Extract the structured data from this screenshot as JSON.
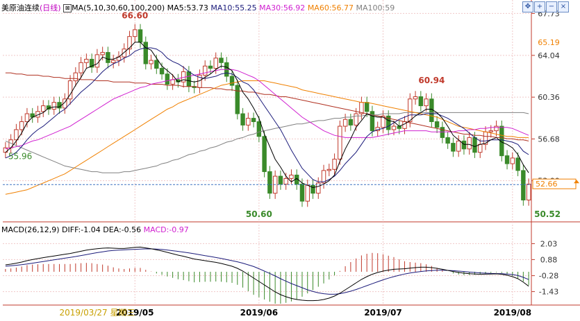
{
  "header": {
    "title": "美原油连续",
    "period": "(日线)",
    "ma_params": "MA(5,10,30,60,100,200)",
    "ma5": "MA5:53.73",
    "ma10": "MA10:55.25",
    "ma30": "MA30:56.92",
    "ma60": "MA60:56.77",
    "ma100": "MA100:59"
  },
  "macd_header": {
    "params": "MACD(26,12,9)",
    "diff": "DIFF:-1.04",
    "dea": "DEA:-0.56",
    "macd": "MACD:-0.97"
  },
  "toolbar": {
    "icons": [
      "move-icon",
      "zoom-in-icon",
      "zoom-out-icon",
      "close-icon"
    ]
  },
  "colors": {
    "up": "#c0392b",
    "down": "#3a8a2a",
    "ma5": "#000000",
    "ma10": "#1a1a7a",
    "ma30": "#d020d0",
    "ma60": "#f08000",
    "ma100": "#808080",
    "ma200": "#b03020",
    "grid": "#f0c8c8"
  },
  "x_axis": {
    "cursor_label": "2019/03/27 星期三",
    "ticks": [
      "2019/05",
      "2019/06",
      "2019/07",
      "2019/08"
    ]
  },
  "chart_data": [
    {
      "type": "candlestick",
      "title": "美原油连续(日线)",
      "y_ticks": [
        "67.73",
        "64.04",
        "60.36",
        "56.68",
        "53.00"
      ],
      "ylim": [
        49.5,
        68.0
      ],
      "annotations": {
        "low_start": "55.96",
        "high": "66.60",
        "low_jun": "50.60",
        "high_jul": "60.94",
        "low_aug": "50.52",
        "ma_tag": "65.19",
        "last_price": "52.66"
      },
      "close": [
        55.9,
        56.6,
        57.5,
        58.2,
        58.9,
        58.6,
        59.1,
        59.6,
        59.3,
        59.9,
        59.4,
        60.2,
        61.8,
        62.5,
        63.4,
        63.7,
        63.0,
        64.1,
        64.3,
        63.4,
        63.6,
        63.9,
        64.6,
        65.7,
        66.3,
        65.2,
        63.3,
        63.6,
        62.9,
        62.4,
        61.5,
        61.9,
        61.7,
        62.6,
        61.3,
        61.2,
        62.3,
        63.1,
        62.9,
        63.8,
        63.4,
        62.2,
        61.4,
        58.9,
        57.9,
        58.5,
        58.2,
        56.9,
        53.8,
        51.9,
        53.4,
        52.7,
        53.2,
        53.5,
        52.7,
        51.2,
        52.6,
        51.9,
        52.8,
        53.9,
        54.0,
        54.9,
        57.8,
        58.4,
        57.9,
        58.9,
        59.9,
        59.1,
        57.4,
        57.7,
        58.7,
        57.5,
        57.8,
        57.6,
        58.2,
        60.2,
        60.4,
        59.6,
        60.2,
        58.2,
        57.7,
        56.8,
        56.3,
        55.6,
        56.5,
        55.8,
        56.8,
        55.5,
        56.2,
        57.3,
        57.4,
        57.8,
        55.2,
        54.5,
        55.0,
        53.9,
        51.3,
        52.7
      ],
      "ma5": [
        55.5,
        55.9,
        56.5,
        57.2,
        58.1,
        58.6,
        58.8,
        59.0,
        59.4,
        59.5,
        59.5,
        59.9,
        60.6,
        61.4,
        62.1,
        62.9,
        63.1,
        63.3,
        63.9,
        63.7,
        63.7,
        63.9,
        64.3,
        64.7,
        65.2,
        65.2,
        64.7,
        64.5,
        63.8,
        63.1,
        62.7,
        62.3,
        61.7,
        61.9,
        61.8,
        61.7,
        61.8,
        62.1,
        62.4,
        62.8,
        63.1,
        63.0,
        62.7,
        61.8,
        60.8,
        60.2,
        59.4,
        58.5,
        57.1,
        56.0,
        54.9,
        54.2,
        53.4,
        52.9,
        53.2,
        52.8,
        52.6,
        52.4,
        52.5,
        52.7,
        53.0,
        53.5,
        54.7,
        55.8,
        56.7,
        57.7,
        58.3,
        58.9,
        58.7,
        58.6,
        58.6,
        58.3,
        58.2,
        57.8,
        58.0,
        58.3,
        58.7,
        59.0,
        59.3,
        59.3,
        59.0,
        58.5,
        57.8,
        57.0,
        56.6,
        56.2,
        56.2,
        56.0,
        56.2,
        56.3,
        56.6,
        56.8,
        56.4,
        56.2,
        55.9,
        55.3,
        54.4,
        53.7
      ],
      "ma10": [
        55.0,
        55.2,
        55.5,
        56.0,
        56.6,
        57.1,
        57.5,
        57.8,
        58.2,
        58.6,
        59.0,
        59.3,
        59.8,
        60.3,
        60.8,
        61.2,
        61.6,
        62.1,
        62.6,
        63.0,
        63.3,
        63.5,
        63.8,
        64.0,
        64.4,
        64.6,
        64.7,
        64.7,
        64.6,
        64.3,
        63.8,
        63.5,
        63.3,
        63.0,
        62.6,
        62.3,
        62.1,
        62.0,
        62.1,
        62.2,
        62.4,
        62.5,
        62.4,
        62.1,
        61.7,
        61.5,
        61.0,
        60.3,
        59.6,
        58.9,
        58.2,
        57.5,
        56.6,
        55.7,
        54.9,
        54.1,
        53.6,
        53.1,
        52.9,
        52.9,
        53.1,
        53.4,
        53.9,
        54.5,
        55.0,
        55.5,
        56.2,
        56.9,
        57.3,
        57.5,
        57.6,
        57.8,
        58.1,
        58.4,
        58.6,
        58.8,
        58.8,
        58.8,
        58.9,
        58.9,
        58.9,
        58.7,
        58.5,
        58.2,
        57.9,
        57.6,
        57.2,
        56.8,
        56.5,
        56.5,
        56.6,
        56.6,
        56.6,
        56.5,
        56.4,
        56.2,
        55.6,
        55.3
      ],
      "ma30": [
        55.8,
        55.9,
        56.0,
        56.1,
        56.3,
        56.5,
        56.6,
        56.8,
        57.0,
        57.2,
        57.4,
        57.6,
        57.8,
        58.1,
        58.4,
        58.7,
        59.0,
        59.3,
        59.6,
        59.9,
        60.2,
        60.4,
        60.6,
        60.8,
        61.0,
        61.2,
        61.3,
        61.5,
        61.6,
        61.7,
        61.8,
        61.9,
        62.0,
        62.1,
        62.2,
        62.3,
        62.4,
        62.5,
        62.6,
        62.7,
        62.8,
        62.8,
        62.8,
        62.7,
        62.5,
        62.3,
        62.1,
        61.8,
        61.4,
        61.0,
        60.6,
        60.2,
        59.8,
        59.4,
        59.0,
        58.6,
        58.3,
        58.0,
        57.7,
        57.4,
        57.2,
        57.0,
        56.9,
        56.8,
        56.8,
        56.8,
        56.8,
        56.8,
        56.8,
        56.9,
        57.0,
        57.1,
        57.2,
        57.3,
        57.4,
        57.4,
        57.4,
        57.4,
        57.4,
        57.3,
        57.3,
        57.3,
        57.3,
        57.3,
        57.4,
        57.4,
        57.5,
        57.5,
        57.6,
        57.6,
        57.7,
        57.7,
        57.7,
        57.7,
        57.6,
        57.4,
        57.2,
        57.0
      ],
      "ma60": [
        51.8,
        51.9,
        52.0,
        52.1,
        52.2,
        52.4,
        52.6,
        52.8,
        53.0,
        53.2,
        53.4,
        53.6,
        53.9,
        54.2,
        54.5,
        54.8,
        55.1,
        55.4,
        55.7,
        56.0,
        56.3,
        56.6,
        56.9,
        57.2,
        57.5,
        57.8,
        58.1,
        58.4,
        58.7,
        59.0,
        59.3,
        59.5,
        59.8,
        60.0,
        60.2,
        60.4,
        60.6,
        60.8,
        61.0,
        61.2,
        61.4,
        61.5,
        61.6,
        61.7,
        61.8,
        61.8,
        61.8,
        61.8,
        61.8,
        61.7,
        61.6,
        61.5,
        61.4,
        61.3,
        61.2,
        61.0,
        60.9,
        60.8,
        60.7,
        60.6,
        60.5,
        60.4,
        60.3,
        60.2,
        60.1,
        60.0,
        59.9,
        59.9,
        59.8,
        59.7,
        59.6,
        59.5,
        59.4,
        59.3,
        59.2,
        59.1,
        59.0,
        58.9,
        58.8,
        58.7,
        58.6,
        58.4,
        58.2,
        58.0,
        57.8,
        57.7,
        57.6,
        57.5,
        57.4,
        57.3,
        57.2,
        57.1,
        57.0,
        56.9,
        56.9,
        56.8,
        56.8,
        56.8
      ],
      "ma100": [
        56.5,
        56.3,
        56.1,
        55.9,
        55.7,
        55.5,
        55.3,
        55.1,
        54.9,
        54.7,
        54.5,
        54.3,
        54.2,
        54.1,
        54.0,
        53.9,
        53.8,
        53.8,
        53.7,
        53.7,
        53.7,
        53.7,
        53.8,
        53.8,
        53.9,
        54.0,
        54.1,
        54.2,
        54.3,
        54.5,
        54.6,
        54.8,
        54.9,
        55.1,
        55.3,
        55.4,
        55.6,
        55.7,
        55.9,
        56.0,
        56.2,
        56.4,
        56.5,
        56.7,
        56.8,
        57.0,
        57.1,
        57.3,
        57.4,
        57.5,
        57.6,
        57.7,
        57.8,
        57.9,
        58.0,
        58.0,
        58.1,
        58.2,
        58.3,
        58.3,
        58.4,
        58.5,
        58.5,
        58.6,
        58.6,
        58.7,
        58.7,
        58.8,
        58.8,
        58.8,
        58.9,
        58.9,
        58.9,
        58.9,
        59.0,
        59.0,
        59.0,
        59.0,
        59.0,
        59.0,
        59.0,
        59.0,
        59.0,
        59.0,
        59.0,
        59.0,
        59.0,
        59.0,
        59.0,
        59.0,
        59.0,
        59.0,
        59.0,
        59.0,
        59.0,
        59.0,
        59.0,
        58.9
      ],
      "ma200": [
        62.5,
        62.5,
        62.4,
        62.4,
        62.3,
        62.3,
        62.3,
        62.2,
        62.2,
        62.1,
        62.1,
        62.0,
        62.0,
        62.0,
        61.9,
        61.9,
        61.9,
        61.8,
        61.8,
        61.8,
        61.7,
        61.7,
        61.7,
        61.7,
        61.6,
        61.6,
        61.6,
        61.5,
        61.5,
        61.5,
        61.4,
        61.4,
        61.4,
        61.3,
        61.3,
        61.3,
        61.2,
        61.2,
        61.2,
        61.1,
        61.1,
        61.0,
        61.0,
        60.9,
        60.9,
        60.8,
        60.8,
        60.7,
        60.6,
        60.6,
        60.5,
        60.4,
        60.4,
        60.3,
        60.2,
        60.1,
        60.0,
        59.9,
        59.8,
        59.7,
        59.6,
        59.5,
        59.4,
        59.3,
        59.2,
        59.1,
        59.0,
        58.9,
        58.8,
        58.7,
        58.6,
        58.5,
        58.4,
        58.3,
        58.2,
        58.1,
        58.0,
        57.9,
        57.8,
        57.7,
        57.6,
        57.5,
        57.4,
        57.3,
        57.2,
        57.1,
        57.1,
        57.0,
        57.0,
        56.9,
        56.9,
        56.8,
        56.8,
        56.7,
        56.7,
        56.6,
        56.6,
        56.5
      ]
    },
    {
      "type": "bar",
      "title": "MACD(26,12,9)",
      "y_ticks": [
        "2.03",
        "0.88",
        "-0.28",
        "-1.43"
      ],
      "ylim": [
        -2.2,
        2.6
      ],
      "diff": [
        0.5,
        0.55,
        0.62,
        0.7,
        0.8,
        0.88,
        0.95,
        1.02,
        1.08,
        1.14,
        1.2,
        1.26,
        1.32,
        1.4,
        1.48,
        1.56,
        1.62,
        1.66,
        1.7,
        1.72,
        1.7,
        1.68,
        1.68,
        1.72,
        1.76,
        1.78,
        1.72,
        1.66,
        1.58,
        1.5,
        1.4,
        1.3,
        1.2,
        1.12,
        1.02,
        0.92,
        0.86,
        0.8,
        0.74,
        0.68,
        0.6,
        0.5,
        0.4,
        0.25,
        0.05,
        -0.2,
        -0.45,
        -0.7,
        -0.95,
        -1.2,
        -1.45,
        -1.65,
        -1.8,
        -1.92,
        -2.0,
        -2.05,
        -2.08,
        -2.08,
        -2.06,
        -2.0,
        -1.9,
        -1.75,
        -1.55,
        -1.3,
        -1.05,
        -0.8,
        -0.55,
        -0.35,
        -0.18,
        -0.05,
        0.05,
        0.12,
        0.18,
        0.2,
        0.22,
        0.26,
        0.3,
        0.33,
        0.33,
        0.3,
        0.25,
        0.18,
        0.1,
        0.02,
        -0.05,
        -0.1,
        -0.14,
        -0.16,
        -0.18,
        -0.17,
        -0.16,
        -0.15,
        -0.18,
        -0.25,
        -0.35,
        -0.5,
        -0.75,
        -1.04
      ],
      "dea": [
        0.4,
        0.43,
        0.47,
        0.51,
        0.56,
        0.62,
        0.68,
        0.74,
        0.8,
        0.86,
        0.92,
        0.98,
        1.04,
        1.1,
        1.17,
        1.24,
        1.31,
        1.38,
        1.44,
        1.5,
        1.54,
        1.56,
        1.58,
        1.6,
        1.62,
        1.64,
        1.65,
        1.65,
        1.64,
        1.61,
        1.57,
        1.52,
        1.47,
        1.42,
        1.36,
        1.3,
        1.23,
        1.16,
        1.1,
        1.03,
        0.96,
        0.88,
        0.8,
        0.72,
        0.62,
        0.5,
        0.38,
        0.22,
        0.05,
        -0.12,
        -0.3,
        -0.5,
        -0.68,
        -0.85,
        -1.0,
        -1.15,
        -1.3,
        -1.42,
        -1.52,
        -1.58,
        -1.62,
        -1.62,
        -1.58,
        -1.5,
        -1.4,
        -1.28,
        -1.14,
        -1.0,
        -0.86,
        -0.72,
        -0.58,
        -0.46,
        -0.35,
        -0.25,
        -0.16,
        -0.09,
        -0.03,
        0.02,
        0.06,
        0.09,
        0.11,
        0.11,
        0.1,
        0.08,
        0.05,
        0.02,
        -0.02,
        -0.05,
        -0.08,
        -0.1,
        -0.12,
        -0.13,
        -0.14,
        -0.16,
        -0.2,
        -0.27,
        -0.4,
        -0.56
      ],
      "macd": [
        0.2,
        0.24,
        0.3,
        0.38,
        0.48,
        0.52,
        0.54,
        0.56,
        0.56,
        0.56,
        0.56,
        0.56,
        0.56,
        0.6,
        0.62,
        0.64,
        0.62,
        0.56,
        0.52,
        0.44,
        0.32,
        0.24,
        0.2,
        0.24,
        0.28,
        0.28,
        0.14,
        0.02,
        -0.12,
        -0.22,
        -0.34,
        -0.44,
        -0.54,
        -0.6,
        -0.68,
        -0.76,
        -0.74,
        -0.72,
        -0.72,
        -0.7,
        -0.72,
        -0.76,
        -0.8,
        -0.94,
        -1.14,
        -1.4,
        -1.66,
        -1.84,
        -2.0,
        -2.16,
        -2.3,
        -2.3,
        -2.24,
        -2.14,
        -2.0,
        -1.8,
        -1.56,
        -1.32,
        -1.08,
        -0.84,
        -0.56,
        -0.26,
        0.06,
        0.4,
        0.7,
        0.96,
        1.18,
        1.3,
        1.36,
        1.34,
        1.26,
        1.16,
        1.06,
        0.9,
        0.76,
        0.7,
        0.66,
        0.62,
        0.54,
        0.42,
        0.28,
        0.14,
        0.0,
        -0.12,
        -0.2,
        -0.24,
        -0.24,
        -0.22,
        -0.2,
        -0.14,
        -0.08,
        -0.04,
        -0.08,
        -0.18,
        -0.3,
        -0.46,
        -0.7,
        -0.97
      ]
    }
  ]
}
